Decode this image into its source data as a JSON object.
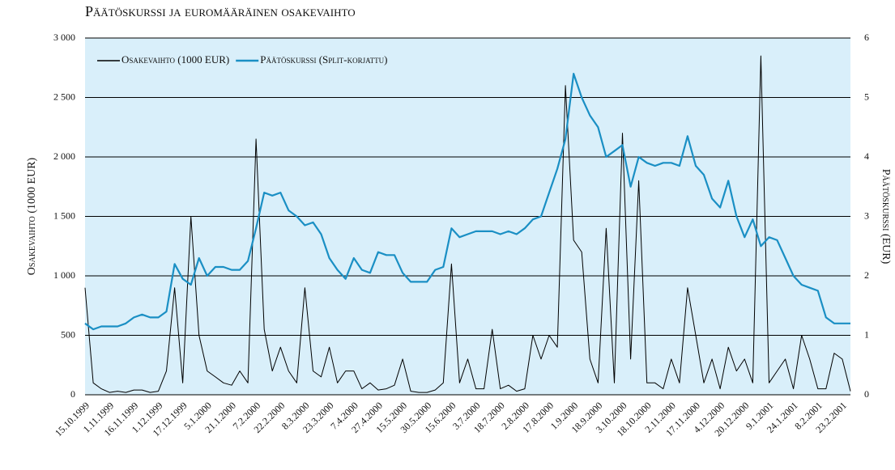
{
  "chart_data": {
    "type": "line",
    "title": "Päätöskurssi ja euromääräinen osakevaihto",
    "y_label": "Osakevaihto (1000 EUR)",
    "y2_label": "Päätöskurssi (EUR)",
    "categories": [
      "15.10.1999",
      null,
      null,
      "1.11.1999",
      null,
      null,
      "16.11.1999",
      null,
      null,
      "1.12.1999",
      null,
      null,
      "17.12.1999",
      null,
      null,
      "5.1.2000",
      null,
      null,
      "21.1.2000",
      null,
      null,
      "7.2.2000",
      null,
      null,
      "22.2.2000",
      null,
      null,
      "8.3.2000",
      null,
      null,
      "23.3.2000",
      null,
      null,
      "7.4.2000",
      null,
      null,
      "27.4.2000",
      null,
      null,
      "15.5.2000",
      null,
      null,
      "30.5.2000",
      null,
      null,
      "15.6.2000",
      null,
      null,
      "3.7.2000",
      null,
      null,
      "18.7.2000",
      null,
      null,
      "2.8.2000",
      null,
      null,
      "17.8.2000",
      null,
      null,
      "1.9.2000",
      null,
      null,
      "18.9.2000",
      null,
      null,
      "3.10.2000",
      null,
      null,
      "18.10.2000",
      null,
      null,
      "2.11.2000",
      null,
      null,
      "17.11.2000",
      null,
      null,
      "4.12.2000",
      null,
      null,
      "20.12.2000",
      null,
      null,
      "9.1.2001",
      null,
      null,
      "24.1.2001",
      null,
      null,
      "8.2.2001",
      null,
      null,
      "23.2.2001",
      null
    ],
    "series": [
      {
        "name": "Osakevaihto (1000 EUR)",
        "color": "#000000",
        "axis": "y",
        "values": [
          900,
          100,
          50,
          20,
          30,
          20,
          40,
          40,
          20,
          30,
          200,
          900,
          100,
          1500,
          500,
          200,
          150,
          100,
          80,
          200,
          100,
          2150,
          550,
          200,
          400,
          200,
          100,
          900,
          200,
          150,
          400,
          100,
          200,
          200,
          50,
          100,
          40,
          50,
          80,
          300,
          30,
          20,
          20,
          40,
          100,
          1100,
          100,
          300,
          50,
          50,
          550,
          50,
          80,
          30,
          50,
          500,
          300,
          500,
          400,
          2600,
          1300,
          1200,
          300,
          100,
          1400,
          100,
          2200,
          300,
          1800,
          100,
          100,
          50,
          300,
          100,
          900,
          500,
          100,
          300,
          50,
          400,
          200,
          300,
          100,
          2850,
          100,
          200,
          300,
          50,
          500,
          300,
          50,
          50,
          350,
          300,
          30
        ]
      },
      {
        "name": "Päätöskurssi (Split-korjattu)",
        "color": "#1a8fc4",
        "axis": "y2",
        "values": [
          1.2,
          1.1,
          1.15,
          1.15,
          1.15,
          1.2,
          1.3,
          1.35,
          1.3,
          1.3,
          1.4,
          2.2,
          1.95,
          1.85,
          2.3,
          2.0,
          2.15,
          2.15,
          2.1,
          2.1,
          2.25,
          2.8,
          3.4,
          3.35,
          3.4,
          3.1,
          3.0,
          2.85,
          2.9,
          2.7,
          2.3,
          2.1,
          1.95,
          2.3,
          2.1,
          2.05,
          2.4,
          2.35,
          2.35,
          2.05,
          1.9,
          1.9,
          1.9,
          2.1,
          2.15,
          2.8,
          2.65,
          2.7,
          2.75,
          2.75,
          2.75,
          2.7,
          2.75,
          2.7,
          2.8,
          2.95,
          3.0,
          3.4,
          3.8,
          4.3,
          5.4,
          5.0,
          4.7,
          4.5,
          4.0,
          4.1,
          4.2,
          3.5,
          4.0,
          3.9,
          3.85,
          3.9,
          3.9,
          3.85,
          4.35,
          3.85,
          3.7,
          3.3,
          3.15,
          3.6,
          3.0,
          2.65,
          2.95,
          2.5,
          2.65,
          2.6,
          2.3,
          2.0,
          1.85,
          1.8,
          1.75,
          1.3,
          1.2,
          1.2,
          1.2
        ]
      }
    ],
    "ylim": [
      0,
      3000
    ],
    "yticks": [
      0,
      500,
      {
        "value": 1000,
        "label": "1 000"
      },
      {
        "value": 1500,
        "label": "1 500"
      },
      {
        "value": 2000,
        "label": "2 000"
      },
      {
        "value": 2500,
        "label": "2 500"
      },
      {
        "value": 3000,
        "label": "3 000"
      }
    ],
    "y2lim": [
      0,
      6
    ],
    "y2ticks": [
      0,
      1,
      2,
      3,
      4,
      5,
      6
    ],
    "grid": true,
    "legend": "top-left",
    "background": "#d9effa"
  }
}
